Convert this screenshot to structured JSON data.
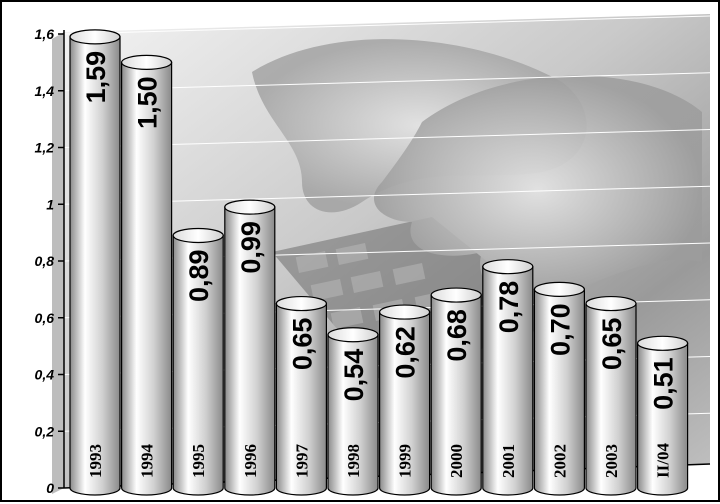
{
  "chart_data": {
    "type": "bar",
    "title": "",
    "xlabel": "",
    "ylabel": "",
    "categories": [
      "1993",
      "1994",
      "1995",
      "1996",
      "1997",
      "1998",
      "1999",
      "2000",
      "2001",
      "2002",
      "2003",
      "II/04"
    ],
    "values": [
      1.59,
      1.5,
      0.89,
      0.99,
      0.65,
      0.54,
      0.62,
      0.68,
      0.78,
      0.7,
      0.65,
      0.51
    ],
    "value_labels": [
      "1,59",
      "1,50",
      "0,89",
      "0,99",
      "0,65",
      "0,54",
      "0,62",
      "0,68",
      "0,78",
      "0,70",
      "0,65",
      "0,51"
    ],
    "ylim": [
      0,
      1.6
    ],
    "yticks": [
      0,
      0.2,
      0.4,
      0.6,
      0.8,
      1.0,
      1.2,
      1.4,
      1.6
    ],
    "ytick_labels": [
      "0",
      "0,2",
      "0,4",
      "0,6",
      "0,8",
      "1",
      "1,2",
      "1,4",
      "1,6"
    ],
    "grid": true,
    "bar_style": "3d-cylinder",
    "background": "photo of hands typing on a keyboard",
    "colors": {
      "bar_light": "#ffffff",
      "bar_dark": "#8a8a8a",
      "grid": "#ffffff",
      "axis": "#000000"
    }
  }
}
